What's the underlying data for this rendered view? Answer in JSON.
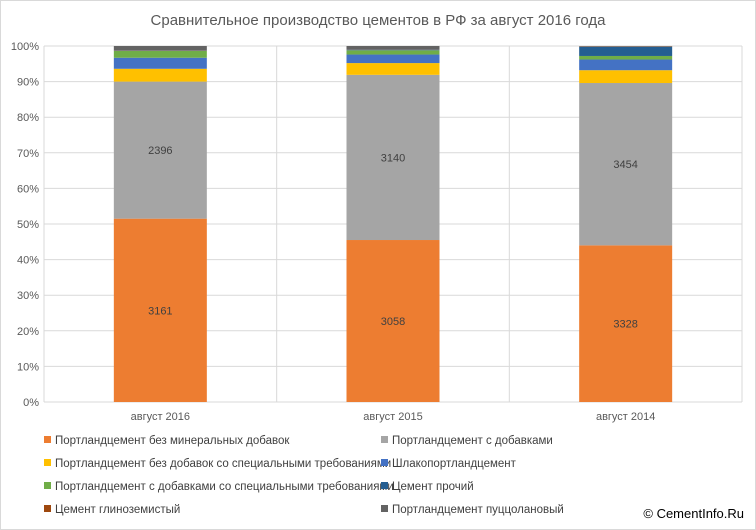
{
  "chart_data": {
    "type": "bar",
    "stacked": "percent",
    "title": "Сравнительное производство цементов в РФ за август 2016 года",
    "categories": [
      "август 2016",
      "август 2015",
      "август 2014"
    ],
    "ylim": [
      0,
      100
    ],
    "yticks": [
      "0%",
      "10%",
      "20%",
      "30%",
      "40%",
      "50%",
      "60%",
      "70%",
      "80%",
      "90%",
      "100%"
    ],
    "grid": true,
    "legend_position": "bottom",
    "series": [
      {
        "name": "Портландцемент без минеральных добавок",
        "color": "#ed7d31",
        "percent": [
          51.5,
          45.5,
          44.0
        ],
        "labels": [
          "3161",
          "3058",
          "3328"
        ]
      },
      {
        "name": "Портландцемент с добавками",
        "color": "#a5a5a5",
        "percent": [
          38.5,
          46.4,
          45.6
        ],
        "labels": [
          "2396",
          "3140",
          "3454"
        ]
      },
      {
        "name": "Портландцемент без добавок со специальными требованиями",
        "color": "#ffc000",
        "percent": [
          3.6,
          3.3,
          3.6
        ],
        "labels": [
          "",
          "",
          ""
        ]
      },
      {
        "name": "Шлакопортландцемент",
        "color": "#4472c4",
        "percent": [
          3.1,
          2.4,
          3.0
        ],
        "labels": [
          "",
          "",
          ""
        ]
      },
      {
        "name": "Портландцемент с добавками со специальными требованиями",
        "color": "#70ad47",
        "percent": [
          1.9,
          1.2,
          1.0
        ],
        "labels": [
          "",
          "",
          ""
        ]
      },
      {
        "name": "Цемент прочий",
        "color": "#255e91",
        "percent": [
          0.1,
          0.2,
          2.6
        ],
        "labels": [
          "",
          "",
          ""
        ]
      },
      {
        "name": "Цемент глиноземистый",
        "color": "#9e480e",
        "percent": [
          0.1,
          0.1,
          0.1
        ],
        "labels": [
          "",
          "",
          ""
        ]
      },
      {
        "name": "Портландцемент пуццолановый",
        "color": "#636363",
        "percent": [
          1.2,
          0.9,
          0.1
        ],
        "labels": [
          "",
          "",
          ""
        ]
      }
    ]
  },
  "watermark": "© CementInfo.Ru"
}
